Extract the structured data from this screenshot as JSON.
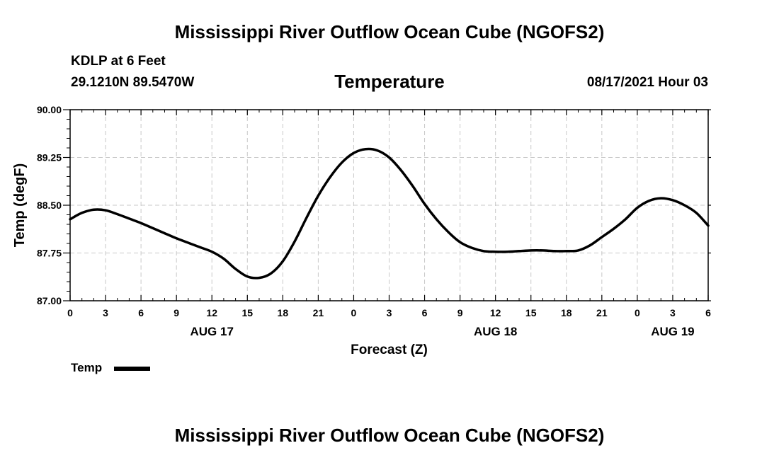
{
  "header": {
    "title": "Mississippi River Outflow Ocean Cube (NGOFS2)",
    "station": "KDLP at 6 Feet",
    "coords": "29.1210N  89.5470W",
    "subtitle": "Temperature",
    "timestamp": "08/17/2021 Hour 03"
  },
  "footer": {
    "title": "Mississippi River Outflow Ocean Cube (NGOFS2)"
  },
  "chart_data": {
    "type": "line",
    "title": "Temperature",
    "xlabel": "Forecast (Z)",
    "ylabel": "Temp (degF)",
    "xlim": [
      0,
      54
    ],
    "ylim": [
      87.0,
      90.0
    ],
    "yticks": [
      "87.00",
      "87.75",
      "88.50",
      "89.25",
      "90.00"
    ],
    "ytick_values": [
      87.0,
      87.75,
      88.5,
      89.25,
      90.0
    ],
    "xticks": [
      "0",
      "3",
      "6",
      "9",
      "12",
      "15",
      "18",
      "21",
      "0",
      "3",
      "6",
      "9",
      "12",
      "15",
      "18",
      "21",
      "0",
      "3",
      "6"
    ],
    "date_labels": [
      {
        "label": "AUG 17",
        "at_hour": 12
      },
      {
        "label": "AUG 18",
        "at_hour": 36
      },
      {
        "label": "AUG 19",
        "at_hour": 51
      }
    ],
    "grid": true,
    "legend": {
      "position": "bottom-left",
      "entries": [
        "Temp"
      ]
    },
    "series": [
      {
        "name": "Temp",
        "color": "#000000",
        "x": [
          0,
          1,
          2,
          3,
          4,
          5,
          6,
          7,
          8,
          9,
          10,
          11,
          12,
          13,
          14,
          15,
          16,
          17,
          18,
          19,
          20,
          21,
          22,
          23,
          24,
          25,
          26,
          27,
          28,
          29,
          30,
          31,
          32,
          33,
          34,
          35,
          36,
          37,
          38,
          39,
          40,
          41,
          42,
          43,
          44,
          45,
          46,
          47,
          48,
          49,
          50,
          51,
          52,
          53,
          54
        ],
        "values": [
          88.28,
          88.38,
          88.43,
          88.42,
          88.36,
          88.29,
          88.22,
          88.14,
          88.06,
          87.98,
          87.91,
          87.84,
          87.77,
          87.66,
          87.5,
          87.38,
          87.36,
          87.43,
          87.62,
          87.93,
          88.3,
          88.65,
          88.94,
          89.17,
          89.32,
          89.38,
          89.36,
          89.25,
          89.05,
          88.8,
          88.52,
          88.28,
          88.08,
          87.92,
          87.83,
          87.78,
          87.77,
          87.77,
          87.78,
          87.79,
          87.79,
          87.78,
          87.78,
          87.79,
          87.87,
          88.0,
          88.13,
          88.28,
          88.46,
          88.57,
          88.61,
          88.58,
          88.5,
          88.38,
          88.18
        ]
      }
    ]
  }
}
